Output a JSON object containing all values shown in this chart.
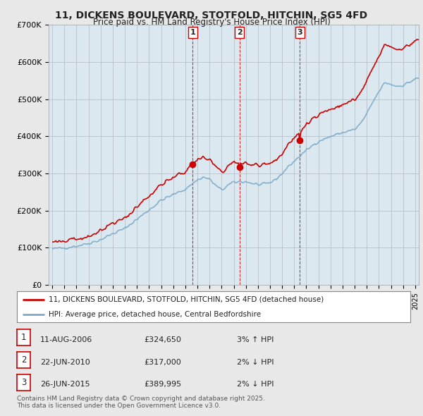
{
  "title": "11, DICKENS BOULEVARD, STOTFOLD, HITCHIN, SG5 4FD",
  "subtitle": "Price paid vs. HM Land Registry's House Price Index (HPI)",
  "ylabel_ticks": [
    "£0",
    "£100K",
    "£200K",
    "£300K",
    "£400K",
    "£500K",
    "£600K",
    "£700K"
  ],
  "ylim": [
    0,
    700000
  ],
  "xlim_start": 1994.7,
  "xlim_end": 2025.3,
  "bg_color": "#e8e8e8",
  "plot_bg_color": "#dce8f0",
  "grid_color": "#b0b8c0",
  "line_color_red": "#cc0000",
  "line_color_blue": "#7aaac8",
  "legend_label_red": "11, DICKENS BOULEVARD, STOTFOLD, HITCHIN, SG5 4FD (detached house)",
  "legend_label_blue": "HPI: Average price, detached house, Central Bedfordshire",
  "sales": [
    {
      "num": 1,
      "year": 2006.61,
      "price": 324650,
      "date": "11-AUG-2006",
      "display_price": "£324,650",
      "pct": "3%",
      "dir": "↑"
    },
    {
      "num": 2,
      "year": 2010.47,
      "price": 317000,
      "date": "22-JUN-2010",
      "display_price": "£317,000",
      "pct": "2%",
      "dir": "↓"
    },
    {
      "num": 3,
      "year": 2015.47,
      "price": 389995,
      "date": "26-JUN-2015",
      "display_price": "£389,995",
      "pct": "2%",
      "dir": "↓"
    }
  ],
  "footer": "Contains HM Land Registry data © Crown copyright and database right 2025.\nThis data is licensed under the Open Government Licence v3.0."
}
